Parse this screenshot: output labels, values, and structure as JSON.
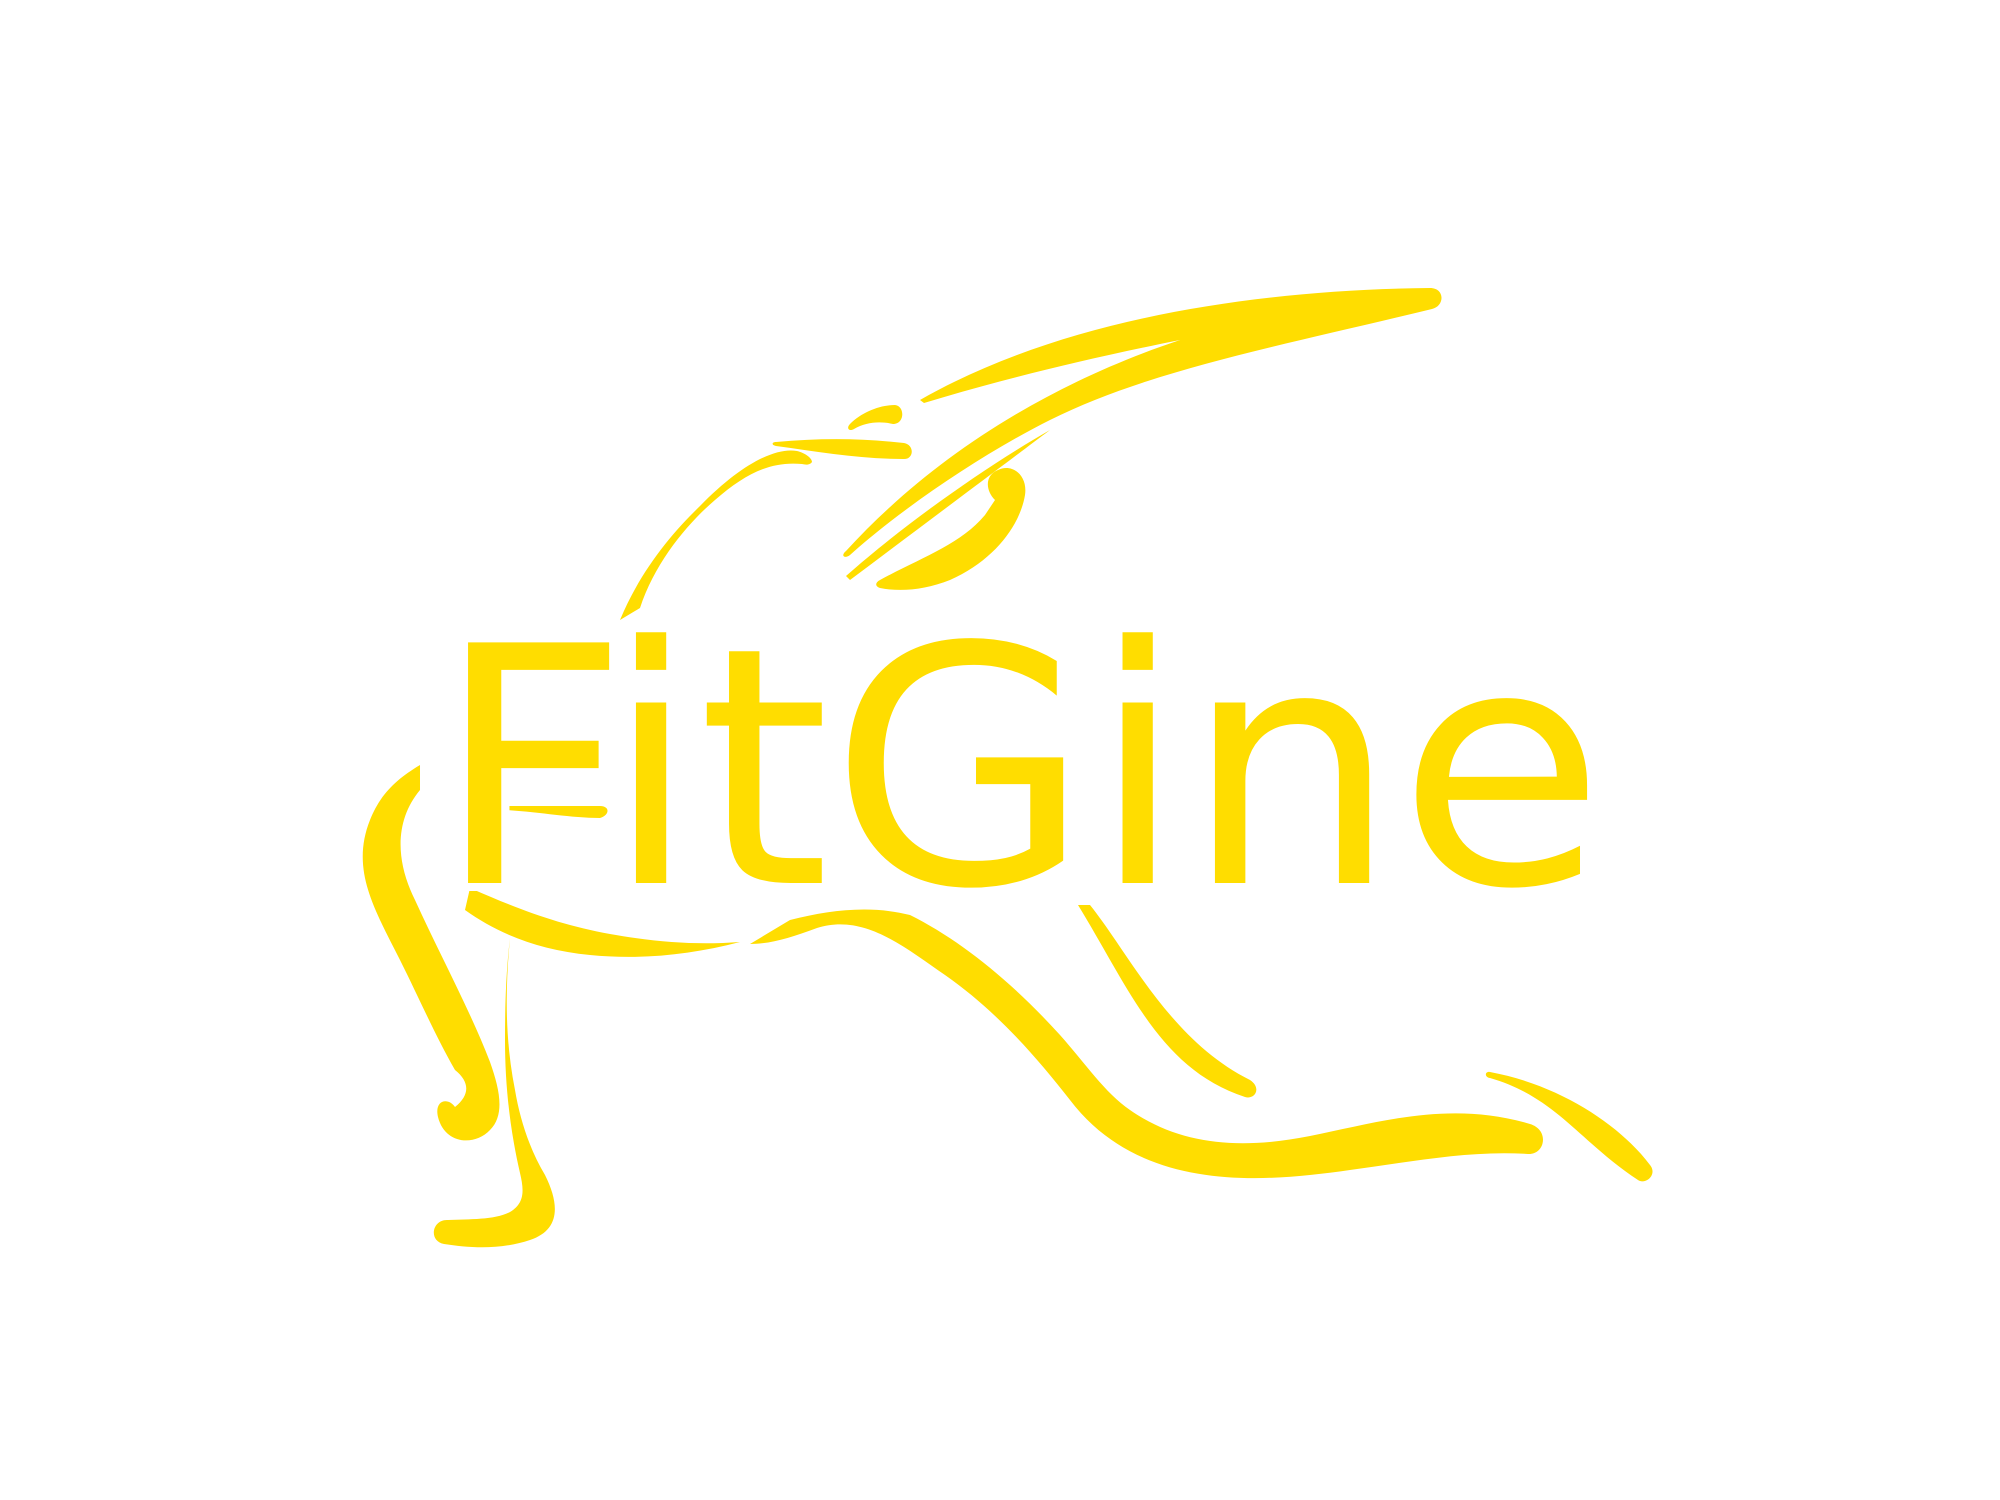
{
  "logo": {
    "brand_name": "FitGine",
    "brand_color": "#FFDD00",
    "background_color": "#FFFFFF",
    "emblem": "runner-figure-icon"
  }
}
